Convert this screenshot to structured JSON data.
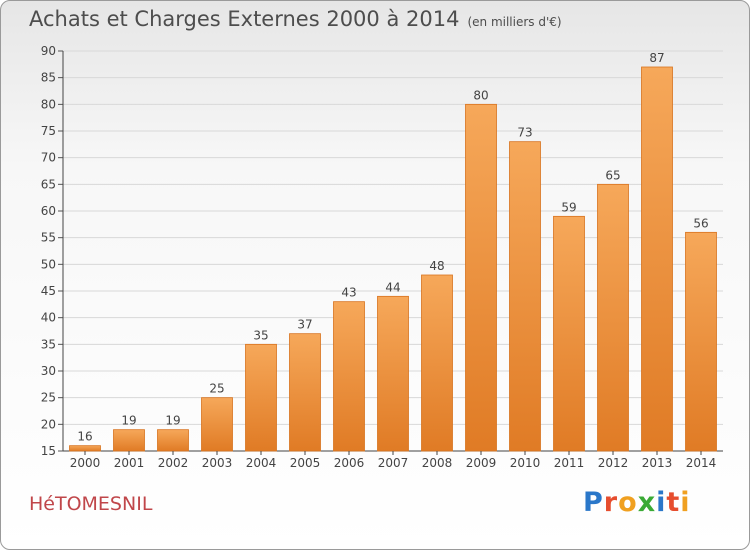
{
  "title": "Achats et Charges Externes 2000 à 2014",
  "subtitle": "(en milliers d'€)",
  "commune": "HéTOMESNIL",
  "logo": {
    "text": "Proxiti",
    "letters": [
      "P",
      "r",
      "o",
      "x",
      "i",
      "t",
      "i"
    ],
    "colors": [
      "#2a77c9",
      "#e64d2e",
      "#f0a020",
      "#3aaa35",
      "#2a77c9",
      "#e64d2e",
      "#f0a020"
    ]
  },
  "chart_data": {
    "type": "bar",
    "categories": [
      "2000",
      "2001",
      "2002",
      "2003",
      "2004",
      "2005",
      "2006",
      "2007",
      "2008",
      "2009",
      "2010",
      "2011",
      "2012",
      "2013",
      "2014"
    ],
    "values": [
      16,
      19,
      19,
      25,
      35,
      37,
      43,
      44,
      48,
      80,
      73,
      59,
      65,
      87,
      56
    ],
    "ylim": [
      15,
      90
    ],
    "yticks": [
      15,
      20,
      25,
      30,
      35,
      40,
      45,
      50,
      55,
      60,
      65,
      70,
      75,
      80,
      85,
      90
    ],
    "grid": true,
    "data_labels": true,
    "bar_color_light": "#f6a85a",
    "bar_color_dark": "#e07b25"
  }
}
